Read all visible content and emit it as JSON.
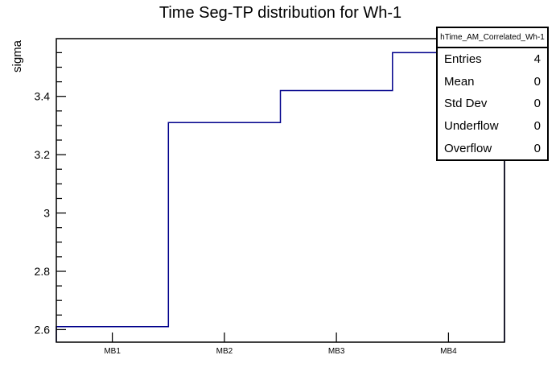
{
  "chart_data": {
    "type": "step",
    "title": "Time Seg-TP distribution for Wh-1",
    "ylabel": "sigma",
    "xlabel": "",
    "categories": [
      "MB1",
      "MB2",
      "MB3",
      "MB4"
    ],
    "values": [
      2.61,
      3.31,
      3.42,
      3.55
    ],
    "ylim": [
      2.557,
      3.598
    ],
    "y_major_ticks": [
      2.6,
      2.8,
      3.0,
      3.2,
      3.4
    ],
    "y_major_tick_labels": [
      "2.6",
      "2.8",
      "3",
      "3.2",
      "3.4"
    ],
    "y_minor_step": 0.05,
    "grid": false,
    "legend_position": "none",
    "line_color": "#00008b",
    "frame_color": "#000000",
    "background_color": "#ffffff",
    "stats_box": {
      "title": "hTime_AM_Correlated_Wh-1",
      "rows": [
        {
          "label": "Entries",
          "value": "4"
        },
        {
          "label": "Mean",
          "value": "0"
        },
        {
          "label": "Std Dev",
          "value": "0"
        },
        {
          "label": "Underflow",
          "value": "0"
        },
        {
          "label": "Overflow",
          "value": "0"
        }
      ]
    }
  }
}
